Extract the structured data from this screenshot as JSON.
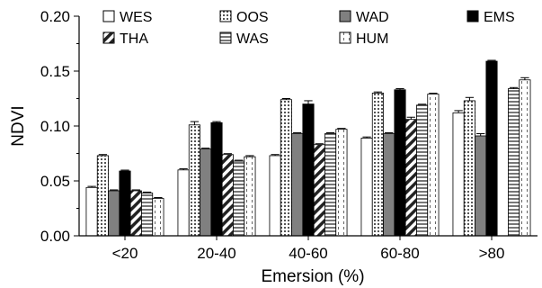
{
  "chart_data": {
    "type": "bar",
    "xlabel": "Emersion (%)",
    "ylabel": "NDVI",
    "ylim": [
      0,
      0.2
    ],
    "yticks": [
      0.0,
      0.05,
      0.1,
      0.15,
      0.2
    ],
    "ytick_labels": [
      "0.00",
      "0.05",
      "0.10",
      "0.15",
      "0.20"
    ],
    "categories": [
      "<20",
      "20-40",
      "40-60",
      "60-80",
      ">80"
    ],
    "legend_position": "top",
    "error_bars": true,
    "series": [
      {
        "name": "WES",
        "pattern": "white",
        "values": [
          0.044,
          0.06,
          0.073,
          0.089,
          0.112
        ],
        "errors": [
          0.001,
          0.001,
          0.001,
          0.001,
          0.002
        ]
      },
      {
        "name": "OOS",
        "pattern": "dots",
        "values": [
          0.073,
          0.101,
          0.124,
          0.13,
          0.123
        ],
        "errors": [
          0.001,
          0.003,
          0.001,
          0.001,
          0.003
        ]
      },
      {
        "name": "WAD",
        "pattern": "gray",
        "values": [
          0.041,
          0.079,
          0.093,
          0.093,
          0.091
        ],
        "errors": [
          0.0,
          0.0,
          0.0,
          0.0,
          0.002
        ]
      },
      {
        "name": "EMS",
        "pattern": "black",
        "values": [
          0.059,
          0.103,
          0.12,
          0.133,
          0.159
        ],
        "errors": [
          0.0,
          0.001,
          0.003,
          0.001,
          0.0
        ]
      },
      {
        "name": "THA",
        "pattern": "diagonal",
        "values": [
          0.041,
          0.074,
          0.083,
          0.106,
          null
        ],
        "errors": [
          0.0,
          0.0,
          0.0,
          0.002,
          null
        ]
      },
      {
        "name": "WAS",
        "pattern": "horizontal",
        "values": [
          0.039,
          0.068,
          0.093,
          0.119,
          0.134
        ],
        "errors": [
          0.0,
          0.0,
          0.0,
          0.0,
          0.001
        ]
      },
      {
        "name": "HUM",
        "pattern": "white-dashed",
        "values": [
          0.034,
          0.072,
          0.097,
          0.129,
          0.142
        ],
        "errors": [
          0.0,
          0.001,
          0.0,
          0.0,
          0.002
        ]
      }
    ]
  }
}
